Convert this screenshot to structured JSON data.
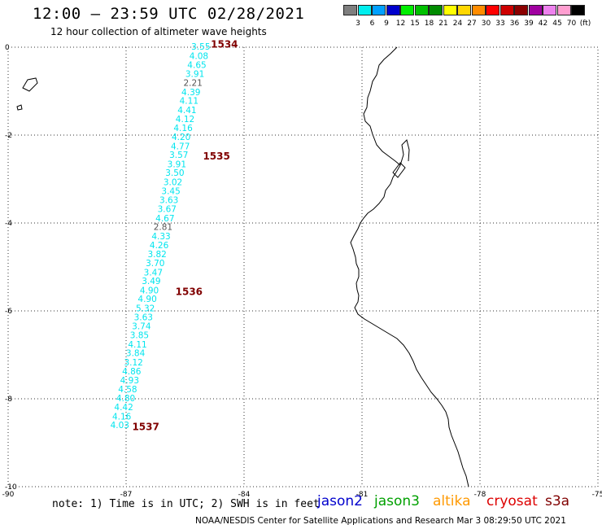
{
  "title": "12:00 – 23:59 UTC 02/28/2021",
  "subtitle": "12 hour collection of altimeter wave heights",
  "legend": {
    "unit": "(ft)",
    "bins": [
      {
        "label": "3",
        "color": "#7f7f7f"
      },
      {
        "label": "6",
        "color": "#00eeee"
      },
      {
        "label": "9",
        "color": "#00a0ff"
      },
      {
        "label": "12",
        "color": "#0000cd"
      },
      {
        "label": "15",
        "color": "#00ee00"
      },
      {
        "label": "18",
        "color": "#00c000"
      },
      {
        "label": "21",
        "color": "#008b00"
      },
      {
        "label": "24",
        "color": "#ffff00"
      },
      {
        "label": "27",
        "color": "#ffd700"
      },
      {
        "label": "30",
        "color": "#ff8c00"
      },
      {
        "label": "33",
        "color": "#ff0000"
      },
      {
        "label": "36",
        "color": "#cd0000"
      },
      {
        "label": "39",
        "color": "#8b0000"
      },
      {
        "label": "42",
        "color": "#a000a0"
      },
      {
        "label": "45",
        "color": "#ee82ee"
      },
      {
        "label": "70",
        "color": "#ff9ed0"
      },
      {
        "label": "",
        "color": "#000000"
      }
    ]
  },
  "axes": {
    "x_ticks": [
      "-90",
      "-87",
      "-84",
      "-81",
      "-78",
      "-75"
    ],
    "y_ticks": [
      "0",
      "-2",
      "-4",
      "-6",
      "-8",
      "-10"
    ],
    "lon_range": [
      -90,
      -75
    ],
    "lat_range": [
      -10,
      0
    ]
  },
  "track": {
    "color_cyan": "#00e5ee",
    "color_gray": "#555555",
    "color_time": "#800000",
    "points": [
      {
        "value": "3.55",
        "lon": -85.1,
        "lat": -0.06,
        "c": "cyan"
      },
      {
        "value": "4.08",
        "lon": -85.15,
        "lat": -0.27,
        "c": "cyan"
      },
      {
        "value": "4.65",
        "lon": -85.2,
        "lat": -0.47,
        "c": "cyan"
      },
      {
        "value": "3.91",
        "lon": -85.25,
        "lat": -0.68,
        "c": "cyan"
      },
      {
        "value": "2.21",
        "lon": -85.3,
        "lat": -0.88,
        "c": "gray"
      },
      {
        "value": "4.39",
        "lon": -85.35,
        "lat": -1.09,
        "c": "cyan"
      },
      {
        "value": "4.11",
        "lon": -85.4,
        "lat": -1.29,
        "c": "cyan"
      },
      {
        "value": "4.41",
        "lon": -85.45,
        "lat": -1.5,
        "c": "cyan"
      },
      {
        "value": "4.12",
        "lon": -85.5,
        "lat": -1.7,
        "c": "cyan"
      },
      {
        "value": "4.16",
        "lon": -85.55,
        "lat": -1.91,
        "c": "cyan"
      },
      {
        "value": "4.20",
        "lon": -85.6,
        "lat": -2.11,
        "c": "cyan"
      },
      {
        "value": "4.77",
        "lon": -85.62,
        "lat": -2.32,
        "c": "cyan"
      },
      {
        "value": "3.57",
        "lon": -85.66,
        "lat": -2.52,
        "c": "cyan"
      },
      {
        "value": "3.91",
        "lon": -85.71,
        "lat": -2.73,
        "c": "cyan"
      },
      {
        "value": "3.50",
        "lon": -85.76,
        "lat": -2.93,
        "c": "cyan"
      },
      {
        "value": "3.02",
        "lon": -85.81,
        "lat": -3.14,
        "c": "cyan"
      },
      {
        "value": "3.45",
        "lon": -85.86,
        "lat": -3.34,
        "c": "cyan"
      },
      {
        "value": "3.63",
        "lon": -85.91,
        "lat": -3.55,
        "c": "cyan"
      },
      {
        "value": "3.67",
        "lon": -85.96,
        "lat": -3.75,
        "c": "cyan"
      },
      {
        "value": "4.67",
        "lon": -86.01,
        "lat": -3.96,
        "c": "cyan"
      },
      {
        "value": "2.81",
        "lon": -86.06,
        "lat": -4.16,
        "c": "gray"
      },
      {
        "value": "4.33",
        "lon": -86.11,
        "lat": -4.37,
        "c": "cyan"
      },
      {
        "value": "4.26",
        "lon": -86.16,
        "lat": -4.57,
        "c": "cyan"
      },
      {
        "value": "3.82",
        "lon": -86.21,
        "lat": -4.78,
        "c": "cyan"
      },
      {
        "value": "3.70",
        "lon": -86.26,
        "lat": -4.98,
        "c": "cyan"
      },
      {
        "value": "3.47",
        "lon": -86.31,
        "lat": -5.19,
        "c": "cyan"
      },
      {
        "value": "3.49",
        "lon": -86.36,
        "lat": -5.39,
        "c": "cyan"
      },
      {
        "value": "4.90",
        "lon": -86.41,
        "lat": -5.6,
        "c": "cyan"
      },
      {
        "value": "4.90",
        "lon": -86.46,
        "lat": -5.8,
        "c": "cyan"
      },
      {
        "value": "5.32",
        "lon": -86.51,
        "lat": -6.01,
        "c": "cyan"
      },
      {
        "value": "3.63",
        "lon": -86.56,
        "lat": -6.21,
        "c": "cyan"
      },
      {
        "value": "3.74",
        "lon": -86.61,
        "lat": -6.42,
        "c": "cyan"
      },
      {
        "value": "3.85",
        "lon": -86.66,
        "lat": -6.62,
        "c": "cyan"
      },
      {
        "value": "4.11",
        "lon": -86.71,
        "lat": -6.83,
        "c": "cyan"
      },
      {
        "value": "3.84",
        "lon": -86.76,
        "lat": -7.03,
        "c": "cyan"
      },
      {
        "value": "3.12",
        "lon": -86.81,
        "lat": -7.24,
        "c": "cyan"
      },
      {
        "value": "4.86",
        "lon": -86.86,
        "lat": -7.44,
        "c": "cyan"
      },
      {
        "value": "4.93",
        "lon": -86.91,
        "lat": -7.65,
        "c": "cyan"
      },
      {
        "value": "4.58",
        "lon": -86.96,
        "lat": -7.85,
        "c": "cyan"
      },
      {
        "value": "4.80",
        "lon": -87.01,
        "lat": -8.06,
        "c": "cyan"
      },
      {
        "value": "4.42",
        "lon": -87.06,
        "lat": -8.26,
        "c": "cyan"
      },
      {
        "value": "4.16",
        "lon": -87.11,
        "lat": -8.47,
        "c": "cyan"
      },
      {
        "value": "4.03",
        "lon": -87.16,
        "lat": -8.67,
        "c": "cyan"
      }
    ],
    "times": [
      {
        "label": "1534",
        "lon": -84.5,
        "lat": -0.01
      },
      {
        "label": "1535",
        "lon": -84.7,
        "lat": -2.56
      },
      {
        "label": "1536",
        "lon": -85.4,
        "lat": -5.64
      },
      {
        "label": "1537",
        "lon": -86.5,
        "lat": -8.71
      }
    ]
  },
  "note": "note:  1) Time is in UTC; 2) SWH is in feet",
  "satellites": [
    {
      "name": "jason2",
      "color": "#0000cd"
    },
    {
      "name": "jason3",
      "color": "#00a000"
    },
    {
      "name": "altika",
      "color": "#ff9900"
    },
    {
      "name": "cryosat",
      "color": "#dd0000"
    },
    {
      "name": "s3a",
      "color": "#800000"
    }
  ],
  "footer": "NOAA/NESDIS Center for Satellite Applications and Research   Mar  3 08:29:50 UTC 2021"
}
